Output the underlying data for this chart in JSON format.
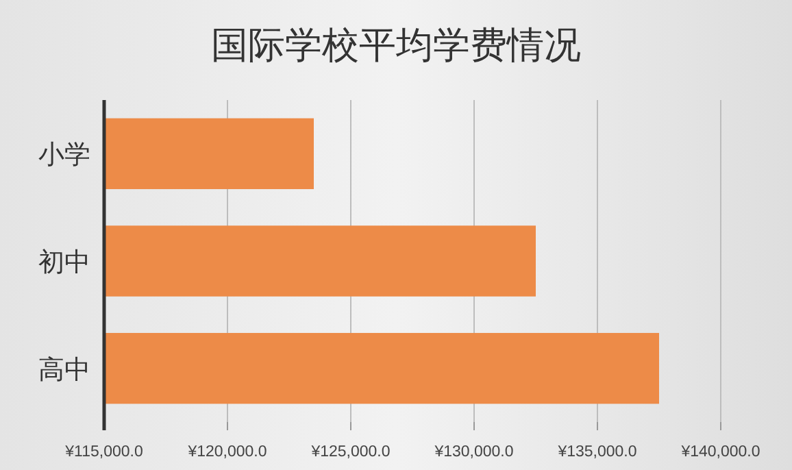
{
  "chart_data": {
    "type": "bar",
    "orientation": "horizontal",
    "title": "国际学校平均学费情况",
    "categories": [
      "小学",
      "初中",
      "高中"
    ],
    "values": [
      123500,
      132500,
      137500
    ],
    "color": "#ed8b48",
    "xlim": [
      115000,
      140000
    ],
    "xticks": [
      {
        "value": 115000,
        "label": "¥115,000.0"
      },
      {
        "value": 120000,
        "label": "¥120,000.0"
      },
      {
        "value": 125000,
        "label": "¥125,000.0"
      },
      {
        "value": 130000,
        "label": "¥130,000.0"
      },
      {
        "value": 135000,
        "label": "¥135,000.0"
      },
      {
        "value": 140000,
        "label": "¥140,000.0"
      }
    ],
    "grid": "x"
  }
}
